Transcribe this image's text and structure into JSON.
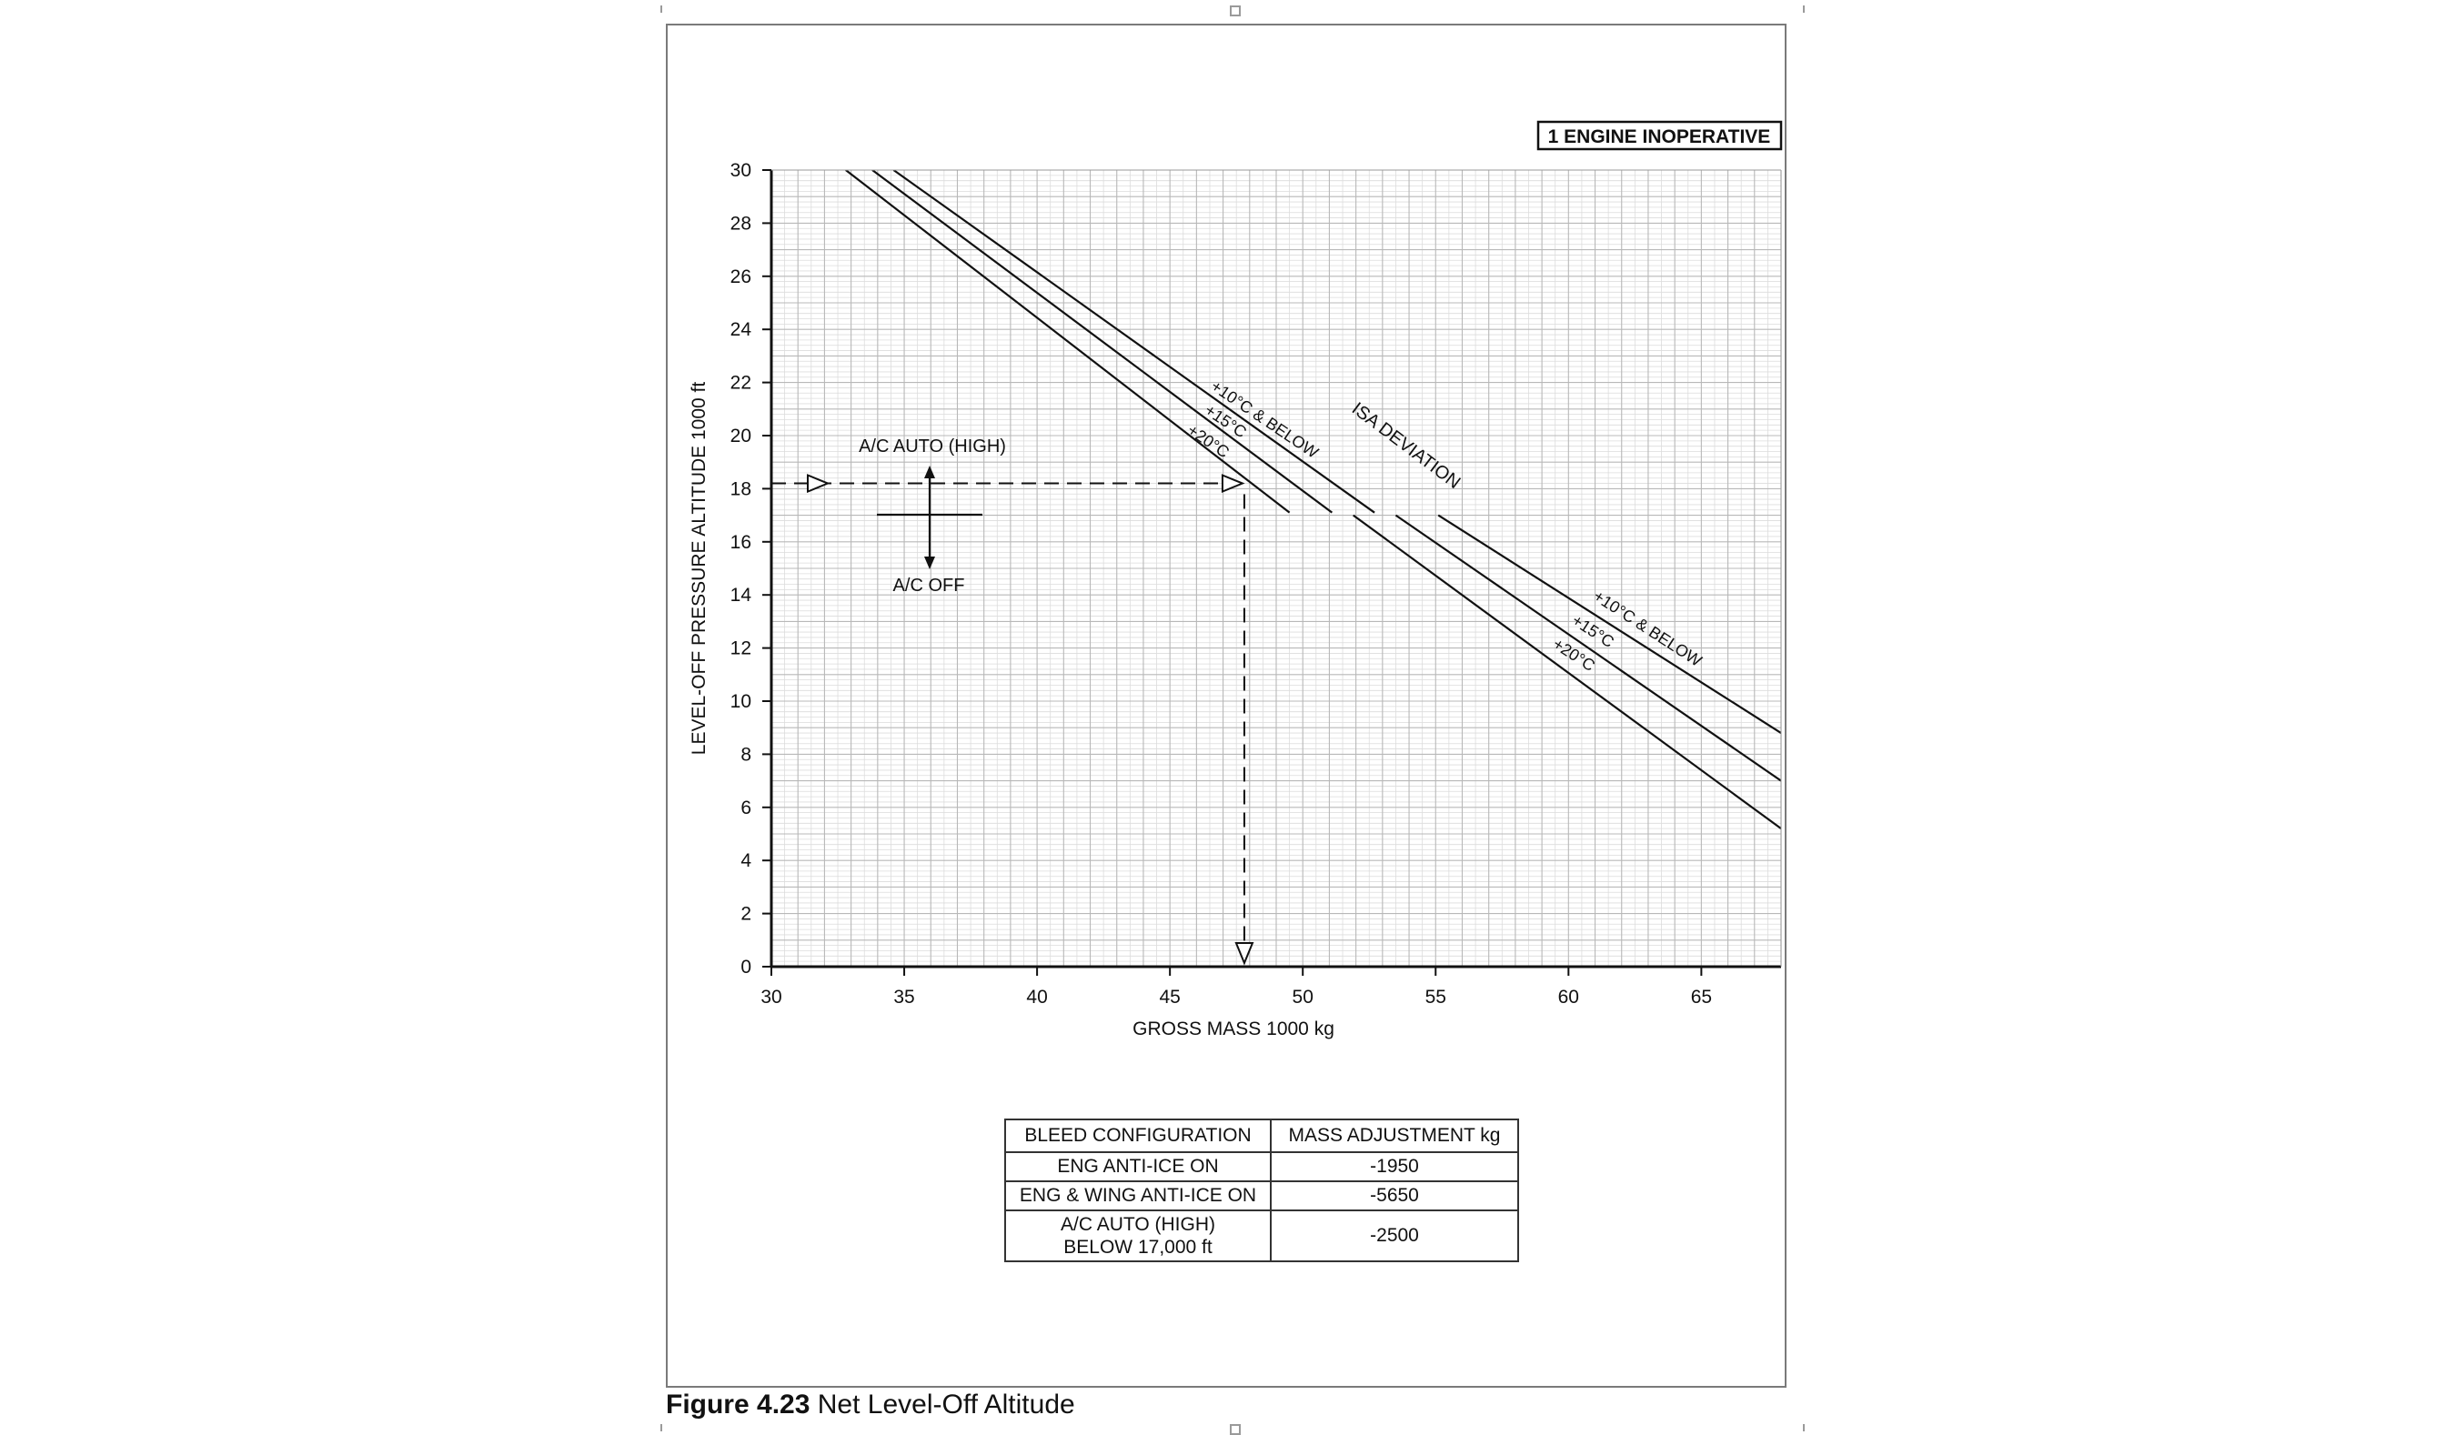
{
  "figure": {
    "number": "Figure 4.23",
    "title": "Net Level-Off Altitude"
  },
  "chart_data": {
    "type": "line",
    "title": "",
    "badge": "1 ENGINE INOPERATIVE",
    "xlabel": "GROSS MASS  1000 kg",
    "ylabel": "LEVEL-OFF PRESSURE ALTITUDE  1000 ft",
    "xlim": [
      30,
      68
    ],
    "ylim": [
      0,
      30
    ],
    "x_ticks": [
      30,
      35,
      40,
      45,
      50,
      55,
      60,
      65
    ],
    "y_ticks": [
      0,
      2,
      4,
      6,
      8,
      10,
      12,
      14,
      16,
      18,
      20,
      22,
      24,
      26,
      28,
      30
    ],
    "grid": true,
    "series_group_label": "ISA DEVIATION",
    "series": [
      {
        "name": "+10°C & BELOW",
        "segments": [
          {
            "x": [
              34.6,
              52.7
            ],
            "y": [
              30,
              17.1
            ]
          },
          {
            "x": [
              55.1,
              68
            ],
            "y": [
              17.0,
              8.8
            ]
          }
        ]
      },
      {
        "name": "+15°C",
        "segments": [
          {
            "x": [
              33.8,
              51.1
            ],
            "y": [
              30,
              17.1
            ]
          },
          {
            "x": [
              53.5,
              68
            ],
            "y": [
              17.0,
              7.0
            ]
          }
        ]
      },
      {
        "name": "+20°C",
        "segments": [
          {
            "x": [
              32.8,
              49.5
            ],
            "y": [
              30,
              17.1
            ]
          },
          {
            "x": [
              51.9,
              68
            ],
            "y": [
              17.0,
              5.2
            ]
          }
        ]
      }
    ],
    "annotations": {
      "ac_auto": "A/C AUTO (HIGH)",
      "ac_off": "A/C OFF",
      "example_path": {
        "start_x": 30,
        "altitude": 18.2,
        "mass": 47.8
      }
    }
  },
  "bleed_table": {
    "headers": [
      "BLEED CONFIGURATION",
      "MASS ADJUSTMENT  kg"
    ],
    "rows": [
      {
        "config": "ENG ANTI-ICE ON",
        "adjustment": "-1950"
      },
      {
        "config": "ENG & WING ANTI-ICE ON",
        "adjustment": "-5650"
      },
      {
        "config_line1": "A/C AUTO (HIGH)",
        "config_line2": "BELOW 17,000 ft",
        "adjustment": "-2500"
      }
    ]
  }
}
